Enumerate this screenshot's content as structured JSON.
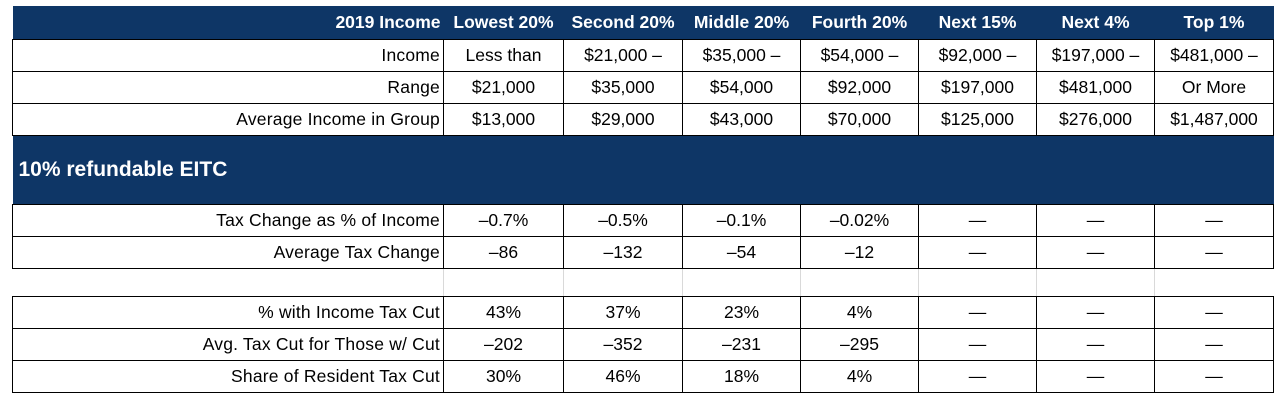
{
  "header": {
    "label": "2019 Income",
    "columns": [
      "Lowest 20%",
      "Second 20%",
      "Middle 20%",
      "Fourth 20%",
      "Next 15%",
      "Next 4%",
      "Top 1%"
    ]
  },
  "income_range": {
    "row1_label": "Income",
    "row1_values": [
      "Less than",
      "$21,000 –",
      "$35,000 –",
      "$54,000 –",
      "$92,000 –",
      "$197,000 –",
      "$481,000 –"
    ],
    "row2_label": "Range",
    "row2_values": [
      "$21,000",
      "$35,000",
      "$54,000",
      "$92,000",
      "$197,000",
      "$481,000",
      "Or More"
    ]
  },
  "average_income": {
    "label": "Average Income in Group",
    "values": [
      "$13,000",
      "$29,000",
      "$43,000",
      "$70,000",
      "$125,000",
      "$276,000",
      "$1,487,000"
    ]
  },
  "section_title": "10% refundable EITC",
  "rows": [
    {
      "label": "Tax Change as % of Income",
      "values": [
        "–0.7%",
        "–0.5%",
        "–0.1%",
        "–0.02%",
        "—",
        "—",
        "—"
      ]
    },
    {
      "label": "Average Tax Change",
      "values": [
        "–86",
        "–132",
        "–54",
        "–12",
        "—",
        "—",
        "—"
      ]
    },
    {
      "label": "% with Income Tax Cut",
      "values": [
        "43%",
        "37%",
        "23%",
        "4%",
        "—",
        "—",
        "—"
      ]
    },
    {
      "label": "Avg. Tax Cut for Those w/ Cut",
      "values": [
        "–202",
        "–352",
        "–231",
        "–295",
        "—",
        "—",
        "—"
      ]
    },
    {
      "label": "Share of Resident Tax Cut",
      "values": [
        "30%",
        "46%",
        "18%",
        "4%",
        "—",
        "—",
        "—"
      ]
    }
  ],
  "colors": {
    "header_bg": "#0e3666",
    "header_text": "#ffffff"
  }
}
